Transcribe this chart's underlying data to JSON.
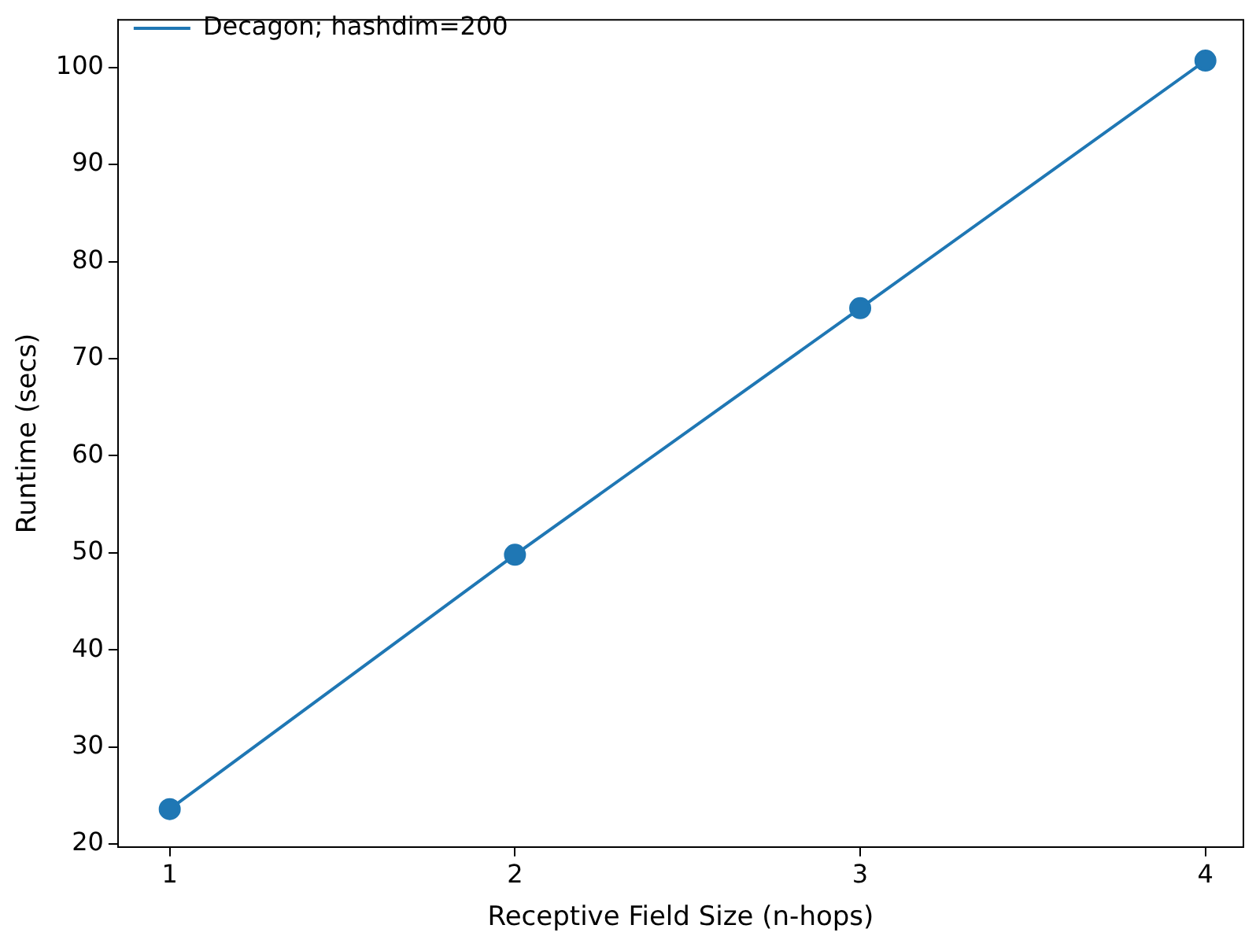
{
  "chart_data": {
    "type": "line",
    "xlabel": "Receptive Field Size (n-hops)",
    "ylabel": "Runtime (secs)",
    "x": [
      1,
      2,
      3,
      4
    ],
    "series": [
      {
        "name": "Decagon; hashdim=200",
        "color": "#1f77b4",
        "values": [
          23.6,
          49.8,
          75.2,
          100.7
        ]
      }
    ],
    "xlim": [
      0.85,
      4.11
    ],
    "xticks": [
      1,
      2,
      3,
      4
    ],
    "ylim": [
      19.7,
      104.9
    ],
    "yticks": [
      20,
      30,
      40,
      50,
      60,
      70,
      80,
      90,
      100
    ],
    "marker": "circle",
    "line_style": "solid",
    "legend": "top left",
    "grid": false
  }
}
